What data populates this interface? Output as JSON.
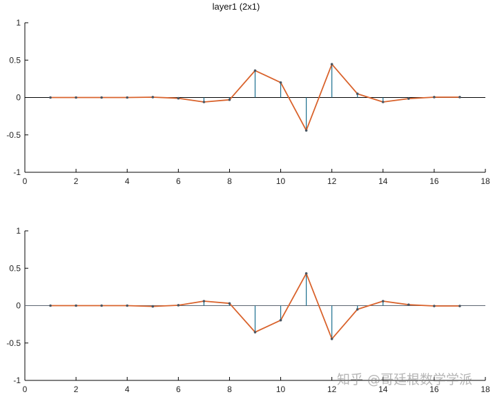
{
  "figure": {
    "title": "layer1 (2x1)",
    "watermark": "知乎 @哥廷根数学学派"
  },
  "colors": {
    "line": "#d9622b",
    "stem": "#1a6e8e",
    "marker": "#4a5560",
    "axis": "#000000",
    "zero_line_top": "#000000",
    "zero_line_bottom": "#5a6470"
  },
  "chart_data": [
    {
      "type": "line",
      "subtype": "stem + line overlay",
      "title": "layer1 (2x1)",
      "xlabel": "",
      "ylabel": "",
      "xlim": [
        0,
        18
      ],
      "ylim": [
        -1,
        1
      ],
      "xticks": [
        0,
        2,
        4,
        6,
        8,
        10,
        12,
        14,
        16,
        18
      ],
      "yticks": [
        -1,
        -0.5,
        0,
        0.5,
        1
      ],
      "ytick_labels": [
        "-1",
        "-0.5",
        "0",
        "0.5",
        "1"
      ],
      "grid": false,
      "x": [
        1,
        2,
        3,
        4,
        5,
        6,
        7,
        8,
        9,
        10,
        11,
        12,
        13,
        14,
        15,
        16,
        17
      ],
      "series": [
        {
          "name": "stem",
          "values": [
            0,
            0,
            0,
            0,
            0.005,
            -0.01,
            -0.06,
            -0.03,
            0.36,
            0.2,
            -0.44,
            0.445,
            0.05,
            -0.06,
            -0.015,
            0.005,
            0.005
          ]
        },
        {
          "name": "line",
          "values": [
            0,
            0,
            0,
            0,
            0.005,
            -0.01,
            -0.06,
            -0.03,
            0.36,
            0.2,
            -0.44,
            0.445,
            0.05,
            -0.06,
            -0.015,
            0.005,
            0.005
          ]
        }
      ]
    },
    {
      "type": "line",
      "subtype": "stem + line overlay",
      "title": "",
      "xlabel": "",
      "ylabel": "",
      "xlim": [
        0,
        18
      ],
      "ylim": [
        -1,
        1
      ],
      "xticks": [
        0,
        2,
        4,
        6,
        8,
        10,
        12,
        14,
        16,
        18
      ],
      "yticks": [
        -1,
        -0.5,
        0,
        0.5,
        1
      ],
      "ytick_labels": [
        "-1",
        "-0.5",
        "0",
        "0.5",
        "1"
      ],
      "grid": false,
      "x": [
        1,
        2,
        3,
        4,
        5,
        6,
        7,
        8,
        9,
        10,
        11,
        12,
        13,
        14,
        15,
        16,
        17
      ],
      "series": [
        {
          "name": "stem",
          "values": [
            0,
            0,
            0,
            0,
            -0.01,
            0.005,
            0.06,
            0.03,
            -0.355,
            -0.195,
            0.43,
            -0.445,
            -0.05,
            0.06,
            0.012,
            -0.005,
            -0.005
          ]
        },
        {
          "name": "line",
          "values": [
            0,
            0,
            0,
            0,
            -0.01,
            0.005,
            0.06,
            0.03,
            -0.355,
            -0.195,
            0.43,
            -0.445,
            -0.05,
            0.06,
            0.012,
            -0.005,
            -0.005
          ]
        }
      ]
    }
  ]
}
